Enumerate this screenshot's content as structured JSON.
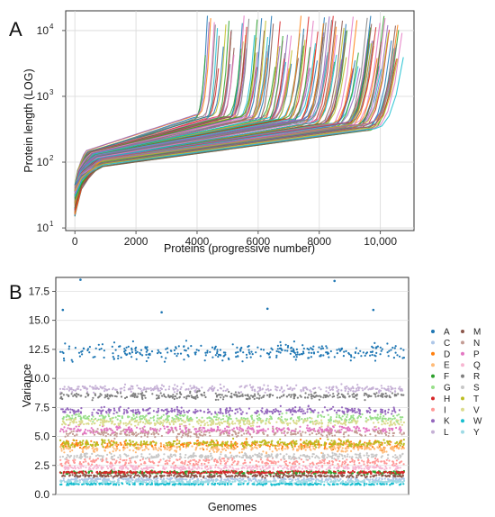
{
  "panels": [
    {
      "id": "A",
      "letter": "A",
      "chart_data": {
        "type": "line",
        "title": "",
        "xlabel": "Proteins (progressive number)",
        "ylabel": "Protein length (LOG)",
        "x_ticks": [
          "0",
          "2000",
          "4000",
          "6000",
          "8000",
          "10,000"
        ],
        "y_ticks": [
          "10",
          "10",
          "10",
          "10"
        ],
        "y_tick_exponents": [
          "1",
          "2",
          "3",
          "4"
        ],
        "xlim": [
          -300,
          11100
        ],
        "ylim_log10": [
          0.96,
          4.3
        ],
        "yscale": "log",
        "grid": true,
        "series_count": 140,
        "series_end_x_range": [
          4300,
          10800
        ],
        "series_start_length": [
          15,
          45
        ],
        "series_max_length": [
          2500,
          17000
        ],
        "palette": [
          "#1f77b4",
          "#ff7f0e",
          "#2ca02c",
          "#d62728",
          "#9467bd",
          "#8c564b",
          "#e377c2",
          "#7f7f7f",
          "#bcbd22",
          "#17becf"
        ]
      }
    },
    {
      "id": "B",
      "letter": "B",
      "chart_data": {
        "type": "scatter",
        "title": "",
        "xlabel": "Genomes",
        "ylabel": "Variance",
        "y_ticks": [
          "0.0",
          "2.5",
          "5.0",
          "7.5",
          "10.0",
          "12.5",
          "15.0",
          "17.5"
        ],
        "ylim": [
          0,
          18.7
        ],
        "grid": true,
        "points_per_series": 320,
        "legend_position": "right",
        "series": [
          {
            "name": "A",
            "color": "#1f77b4",
            "mean": 12.3,
            "spread": 0.7
          },
          {
            "name": "C",
            "color": "#aec7e8",
            "mean": 1.3,
            "spread": 0.15
          },
          {
            "name": "D",
            "color": "#ff7f0e",
            "mean": 4.3,
            "spread": 0.35
          },
          {
            "name": "E",
            "color": "#ffbb78",
            "mean": 4.0,
            "spread": 0.35
          },
          {
            "name": "F",
            "color": "#2ca02c",
            "mean": 1.9,
            "spread": 0.15
          },
          {
            "name": "G",
            "color": "#98df8a",
            "mean": 6.6,
            "spread": 0.35
          },
          {
            "name": "H",
            "color": "#d62728",
            "mean": 1.9,
            "spread": 0.1
          },
          {
            "name": "I",
            "color": "#ff9896",
            "mean": 2.8,
            "spread": 0.35
          },
          {
            "name": "K",
            "color": "#9467bd",
            "mean": 7.2,
            "spread": 0.3
          },
          {
            "name": "L",
            "color": "#c5b0d5",
            "mean": 9.1,
            "spread": 0.3
          },
          {
            "name": "M",
            "color": "#8c564b",
            "mean": 1.6,
            "spread": 0.12
          },
          {
            "name": "N",
            "color": "#c49c94",
            "mean": 5.3,
            "spread": 0.35
          },
          {
            "name": "P",
            "color": "#e377c2",
            "mean": 5.6,
            "spread": 0.3
          },
          {
            "name": "Q",
            "color": "#f7b6d2",
            "mean": 2.3,
            "spread": 0.2
          },
          {
            "name": "R",
            "color": "#7f7f7f",
            "mean": 8.5,
            "spread": 0.3
          },
          {
            "name": "S",
            "color": "#c7c7c7",
            "mean": 3.3,
            "spread": 0.25
          },
          {
            "name": "T",
            "color": "#bcbd22",
            "mean": 4.4,
            "spread": 0.3
          },
          {
            "name": "V",
            "color": "#dbdb8d",
            "mean": 6.2,
            "spread": 0.3
          },
          {
            "name": "W",
            "color": "#17becf",
            "mean": 0.9,
            "spread": 0.08
          },
          {
            "name": "Y",
            "color": "#9edae5",
            "mean": 1.1,
            "spread": 0.1
          }
        ],
        "outliers": [
          {
            "series": "A",
            "x_frac": 0.07,
            "y": 18.5
          },
          {
            "series": "A",
            "x_frac": 0.79,
            "y": 18.4
          },
          {
            "series": "A",
            "x_frac": 0.02,
            "y": 15.9
          },
          {
            "series": "A",
            "x_frac": 0.3,
            "y": 15.7
          },
          {
            "series": "A",
            "x_frac": 0.6,
            "y": 16.0
          },
          {
            "series": "A",
            "x_frac": 0.9,
            "y": 15.9
          }
        ]
      }
    }
  ]
}
